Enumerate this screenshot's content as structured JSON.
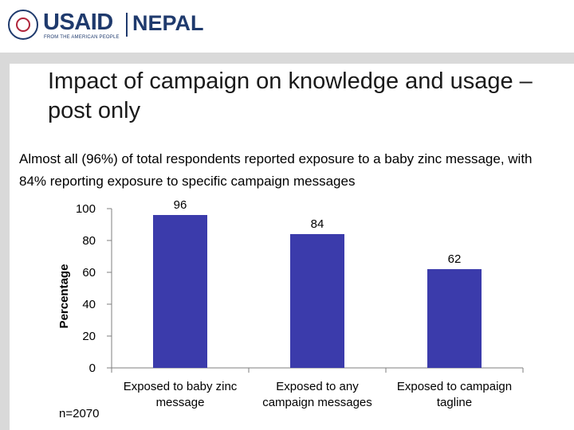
{
  "header": {
    "logo_usaid": "USAID",
    "logo_country": "NEPAL",
    "logo_tagline": "FROM THE AMERICAN PEOPLE"
  },
  "slide": {
    "title": "Impact of campaign on knowledge and usage – post only",
    "subtitle": "Almost all (96%) of total respondents reported exposure to a baby zinc message, with 84% reporting exposure to specific campaign messages",
    "footnote": "n=2070"
  },
  "colors": {
    "bar": "#3b3bab",
    "accent": "#1f3a6d",
    "sidebar": "#d9d9d9"
  },
  "chart_data": {
    "type": "bar",
    "categories": [
      [
        "Exposed to baby zinc",
        "message"
      ],
      [
        "Exposed to any",
        "campaign messages"
      ],
      [
        "Exposed to campaign",
        "tagline"
      ]
    ],
    "values": [
      96,
      84,
      62
    ],
    "value_labels": [
      "96",
      "84",
      "62"
    ],
    "ylabel": "Percentage",
    "xlabel": "",
    "ylim": [
      0,
      100
    ],
    "yticks": [
      0,
      20,
      40,
      60,
      80,
      100
    ],
    "grid": false,
    "legend": "none"
  }
}
